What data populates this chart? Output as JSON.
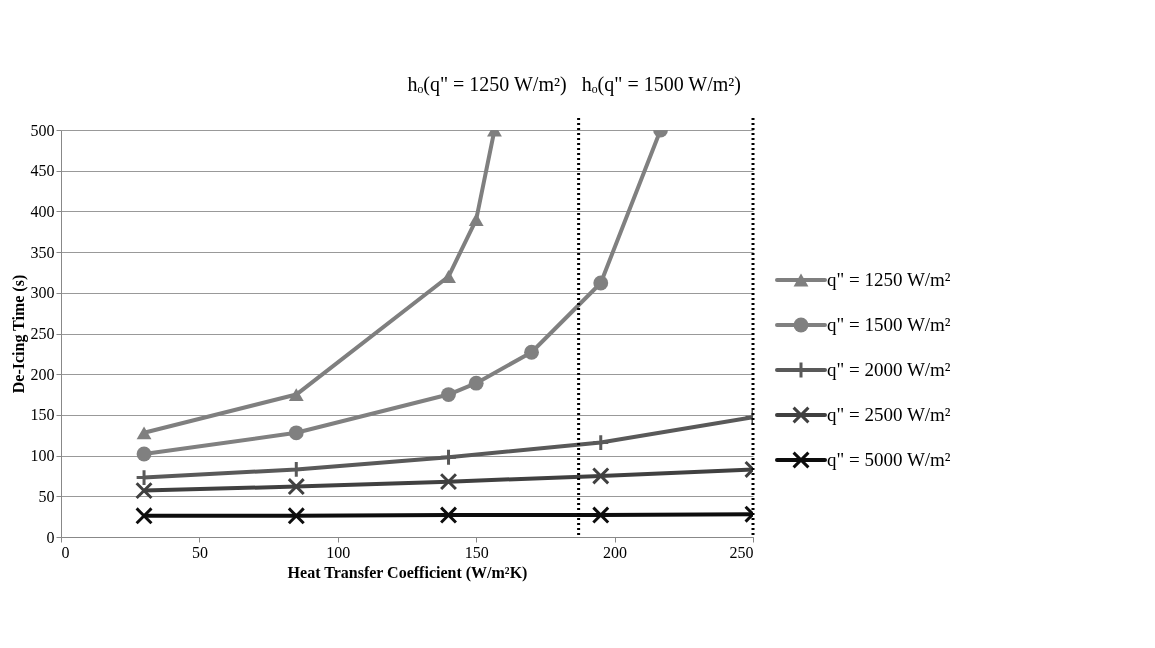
{
  "chart_data": {
    "type": "line",
    "xlabel": "Heat Transfer Coefficient (W/m²K)",
    "ylabel": "De-Icing Time (s)",
    "xlim": [
      0,
      250
    ],
    "xticks": [
      0,
      50,
      100,
      150,
      200,
      250
    ],
    "ylim": [
      0,
      500
    ],
    "yticks": [
      0,
      50,
      100,
      150,
      200,
      250,
      300,
      350,
      400,
      450,
      500
    ],
    "grid": "y",
    "legend": "right",
    "line_style": "solid",
    "series": [
      {
        "name": "q\" = 1250 W/m²",
        "color": "#7f7f7f",
        "marker": "triangle",
        "x": [
          30,
          85,
          140,
          150,
          156.6
        ],
        "values": [
          128,
          175,
          320,
          390,
          500
        ]
      },
      {
        "name": "q\" = 1500 W/m²",
        "color": "#808080",
        "marker": "circle",
        "x": [
          30,
          85,
          140,
          150,
          170,
          195,
          216.6
        ],
        "values": [
          102,
          128,
          175,
          189,
          227,
          312,
          500
        ]
      },
      {
        "name": "q\" = 2000 W/m²",
        "color": "#595959",
        "marker": "plus",
        "x": [
          30,
          85,
          140,
          195,
          250
        ],
        "values": [
          73,
          83,
          98,
          116,
          147
        ]
      },
      {
        "name": "q\" = 2500 W/m²",
        "color": "#404040",
        "marker": "cross",
        "x": [
          30,
          85,
          140,
          195,
          250
        ],
        "values": [
          57,
          62,
          68,
          75,
          83
        ]
      },
      {
        "name": "q\" = 5000 W/m²",
        "color": "#0d0d0d",
        "marker": "cross",
        "x": [
          30,
          85,
          140,
          195,
          250
        ],
        "values": [
          26,
          26,
          27,
          27,
          28
        ]
      }
    ],
    "ref_lines": [
      {
        "axis": "x",
        "value": 187,
        "color": "#000000",
        "line_style": "dotted"
      },
      {
        "axis": "x",
        "value": 250,
        "color": "#000000",
        "line_style": "dotted"
      }
    ],
    "annotations": [
      "hₒ(q\" = 1250 W/m²)",
      "hₒ(q\" = 1500 W/m²)"
    ]
  }
}
